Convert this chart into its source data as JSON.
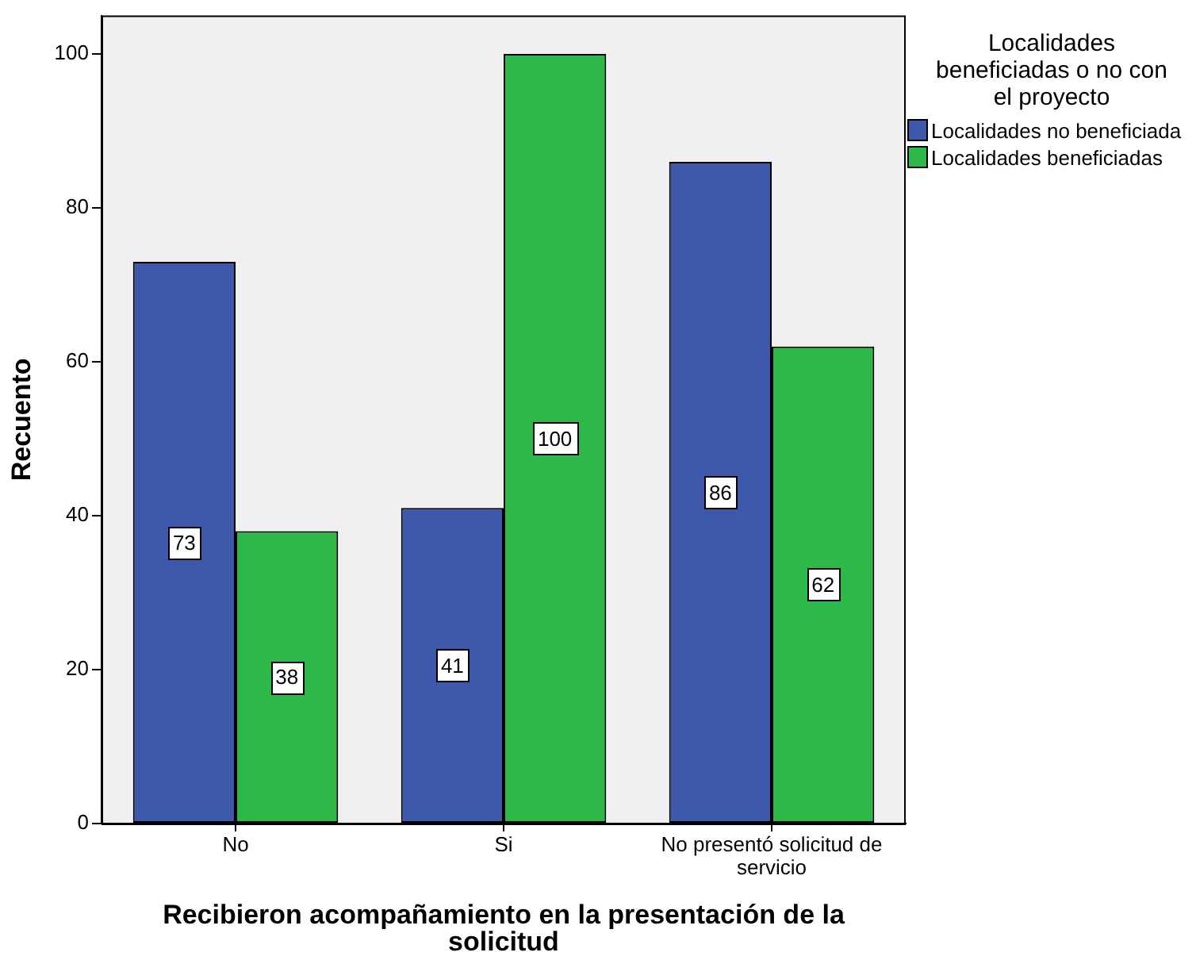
{
  "chart_data": {
    "type": "bar",
    "xlabel": "Recibieron acompañamiento en la presentación de la solicitud",
    "ylabel": "Recuento",
    "legend_title": "Localidades beneficiadas o no con el proyecto",
    "categories": [
      "No",
      "Si",
      "No presentó solicitud de servicio"
    ],
    "series": [
      {
        "name": "Localidades no beneficiada",
        "color": "#3e58ac",
        "values": [
          73,
          41,
          86
        ]
      },
      {
        "name": "Localidades beneficiadas",
        "color": "#2eb848",
        "values": [
          38,
          100,
          62
        ]
      }
    ],
    "ylim": [
      0,
      105
    ],
    "yticks": [
      0,
      20,
      40,
      60,
      80,
      100
    ],
    "grid": false,
    "legend": "top right",
    "data_labels": true
  }
}
